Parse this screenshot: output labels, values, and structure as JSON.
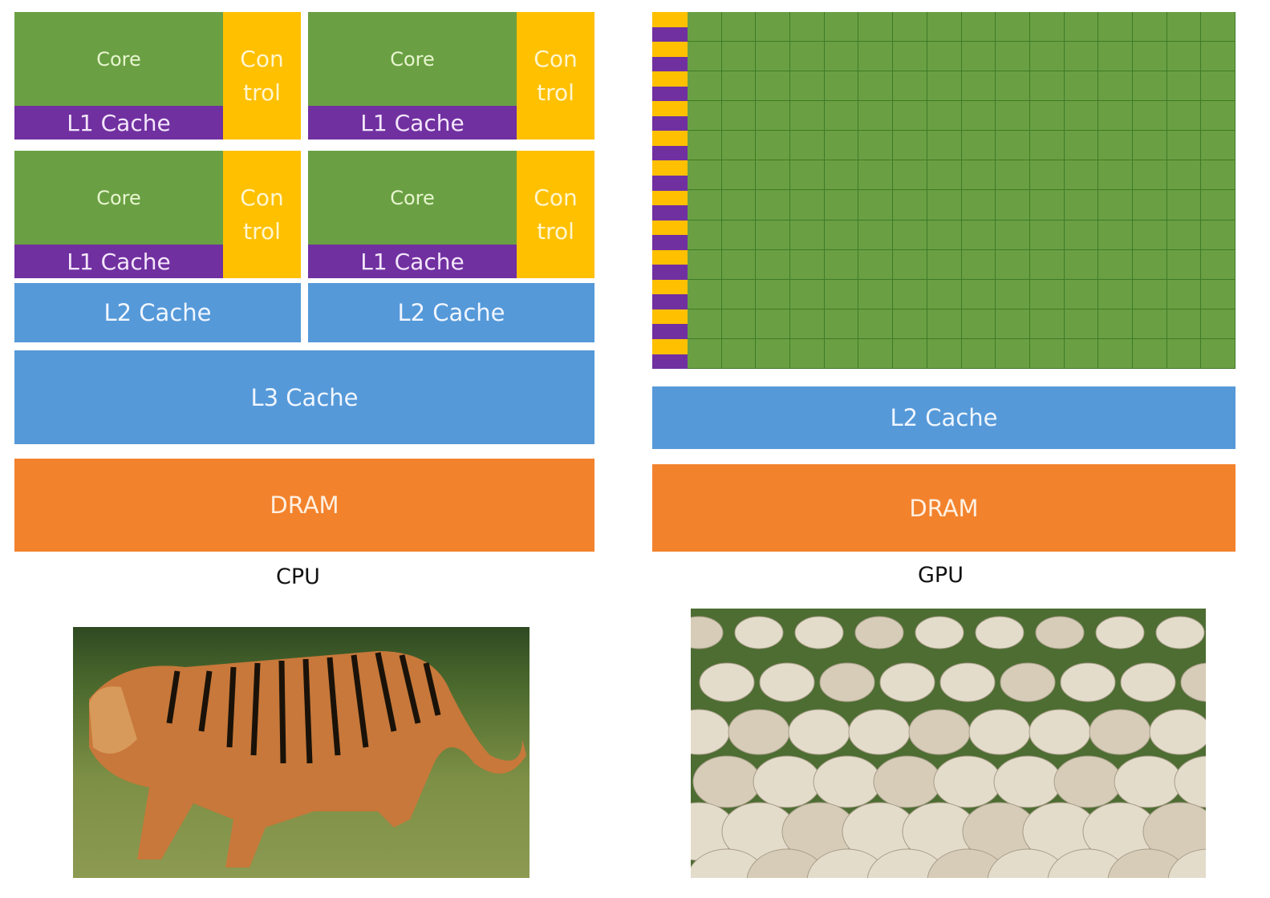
{
  "cpu": {
    "label": "CPU",
    "cores": [
      {
        "core": "Core",
        "control": [
          "Con",
          "trol"
        ],
        "l1": "L1 Cache"
      },
      {
        "core": "Core",
        "control": [
          "Con",
          "trol"
        ],
        "l1": "L1 Cache"
      },
      {
        "core": "Core",
        "control": [
          "Con",
          "trol"
        ],
        "l1": "L1 Cache"
      },
      {
        "core": "Core",
        "control": [
          "Con",
          "trol"
        ],
        "l1": "L1 Cache"
      }
    ],
    "l2": [
      "L2 Cache",
      "L2 Cache"
    ],
    "l3": "L3 Cache",
    "dram": "DRAM"
  },
  "gpu": {
    "label": "GPU",
    "grid_rows": 12,
    "grid_cols": 16,
    "l2": "L2 Cache",
    "dram": "DRAM"
  },
  "colors": {
    "core": "#6aa043",
    "l1": "#7030a0",
    "control": "#ffc000",
    "cache": "#5599d9",
    "dram": "#f3822c"
  },
  "images": {
    "cpu_image": "tiger photo",
    "gpu_image": "sheep flock photo"
  }
}
